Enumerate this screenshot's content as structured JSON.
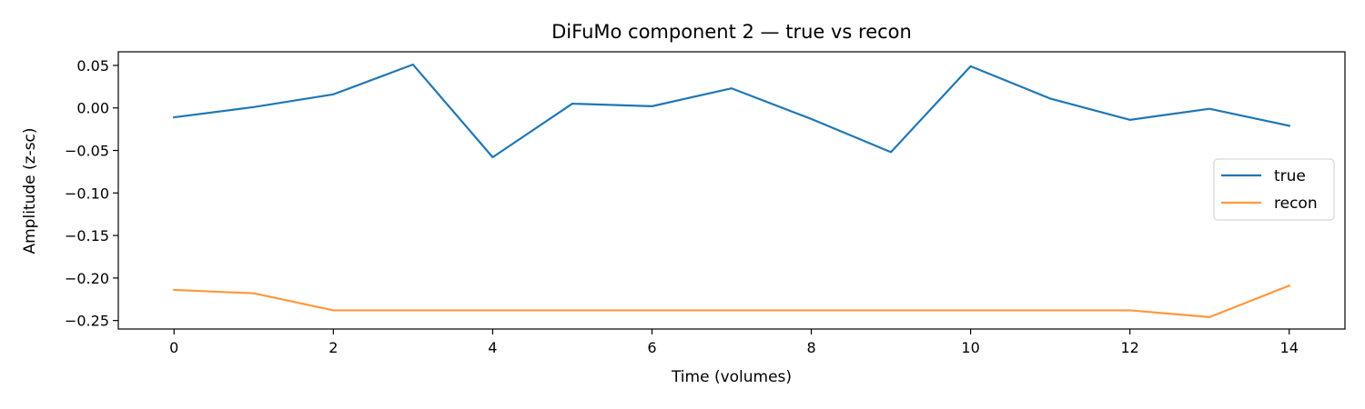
{
  "chart_data": {
    "type": "line",
    "title": "DiFuMo component 2 — true vs recon",
    "xlabel": "Time (volumes)",
    "ylabel": "Amplitude (z-sc)",
    "x": [
      0,
      1,
      2,
      3,
      4,
      5,
      6,
      7,
      8,
      9,
      10,
      11,
      12,
      13,
      14
    ],
    "xlim": [
      -0.7,
      14.7
    ],
    "ylim": [
      -0.26,
      0.066
    ],
    "xticks": [
      0,
      2,
      4,
      6,
      8,
      10,
      12,
      14
    ],
    "xtick_labels": [
      "0",
      "2",
      "4",
      "6",
      "8",
      "10",
      "12",
      "14"
    ],
    "yticks": [
      0.05,
      0.0,
      -0.05,
      -0.1,
      -0.15,
      -0.2,
      -0.25
    ],
    "ytick_labels": [
      "0.05",
      "0.00",
      "−0.05",
      "−0.10",
      "−0.15",
      "−0.20",
      "−0.25"
    ],
    "grid": false,
    "legend_position": "center-right",
    "series": [
      {
        "name": "true",
        "color": "#1f77b4",
        "values": [
          -0.011,
          0.001,
          0.016,
          0.051,
          -0.058,
          0.005,
          0.002,
          0.023,
          -0.013,
          -0.052,
          0.049,
          0.011,
          -0.014,
          -0.001,
          -0.021
        ]
      },
      {
        "name": "recon",
        "color": "#ff983e",
        "values": [
          -0.214,
          -0.218,
          -0.238,
          -0.238,
          -0.238,
          -0.238,
          -0.238,
          -0.238,
          -0.238,
          -0.238,
          -0.238,
          -0.238,
          -0.238,
          -0.246,
          -0.209
        ]
      }
    ]
  }
}
